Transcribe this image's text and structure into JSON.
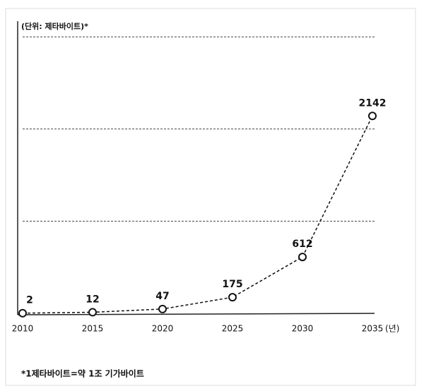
{
  "chart_data": {
    "type": "line",
    "y_unit_label": "(단위: 제타바이트)*",
    "x_unit_label": "(년)",
    "footnote": "*1제타바이트=약 1조 기가바이트",
    "x": [
      2010,
      2015,
      2020,
      2025,
      2030,
      2035
    ],
    "series": [
      {
        "color": "#111111",
        "values": [
          2,
          12,
          47,
          175,
          612,
          2142
        ]
      }
    ],
    "xlim": [
      2010,
      2035
    ],
    "xticks": [
      2010,
      2015,
      2020,
      2025,
      2030,
      2035
    ],
    "ylim": [
      0,
      3170
    ],
    "yticks": [
      1000,
      2000,
      3000
    ],
    "grid": true
  }
}
